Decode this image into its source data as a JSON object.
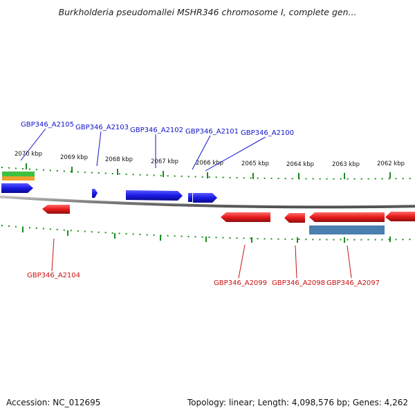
{
  "header": {
    "title": "Burkholderia pseudomallei MSHR346 chromosome I, complete gen..."
  },
  "footer": {
    "accession": "Accession: NC_012695",
    "summary": "Topology: linear; Length: 4,098,576 bp; Genes: 4,262"
  },
  "scale": {
    "ticks": [
      "2070 kbp",
      "2069 kbp",
      "2068 kbp",
      "2067 kbp",
      "2066 kbp",
      "2065 kbp",
      "2064 kbp",
      "2063 kbp",
      "2062 kbp"
    ]
  },
  "genes": {
    "forward": [
      "GBP346_A2105",
      "GBP346_A2103",
      "GBP346_A2102",
      "GBP346_A2101",
      "GBP346_A2100"
    ],
    "reverse": [
      "GBP346_A2104",
      "GBP346_A2099",
      "GBP346_A2098",
      "GBP346_A2097"
    ]
  },
  "colors": {
    "forward": "#1a1ae6",
    "reverse": "#e61a1a",
    "backbone": "#808080",
    "ticks": "#1a8c1a",
    "feature_green": "#40c040",
    "feature_orange": "#f0a030",
    "feature_steel": "#4a7fb0"
  }
}
